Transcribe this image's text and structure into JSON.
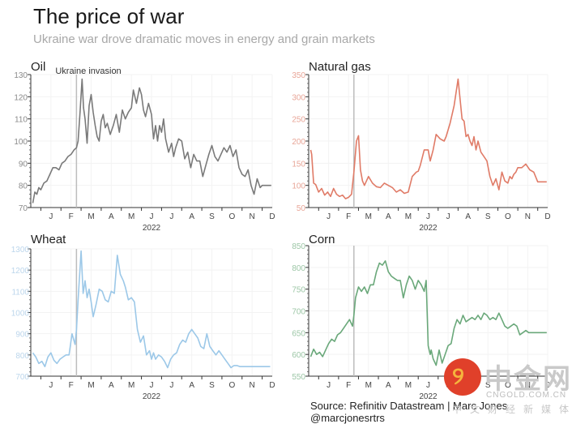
{
  "header": {
    "title": "The price of war",
    "subtitle": "Ukraine war drove dramatic moves in energy and grain markets"
  },
  "footer": {
    "source": "Source: Refinitiv Datastream | Marc Jones @marcjonesrtrs"
  },
  "watermark": {
    "logo_text": "中金网",
    "url": "CNGOLD.COM.CN",
    "tagline": "中文财经新媒体"
  },
  "chart_data": [
    {
      "type": "line",
      "title": "Oil",
      "color": "#7a7a7a",
      "axis_color": "#8a8a8a",
      "annotation": {
        "label": "Ukraine invasion",
        "x": 1.77
      },
      "xlabel": "2022",
      "x_ticks": [
        "J",
        "F",
        "M",
        "A",
        "M",
        "J",
        "J",
        "A",
        "S",
        "O",
        "N",
        "D"
      ],
      "ylim": [
        70,
        130
      ],
      "y_ticks": [
        70,
        80,
        90,
        100,
        110,
        120,
        130
      ],
      "x": [
        -0.4,
        -0.3,
        -0.2,
        -0.1,
        0.0,
        0.15,
        0.3,
        0.45,
        0.6,
        0.75,
        0.9,
        1.05,
        1.2,
        1.35,
        1.5,
        1.65,
        1.77,
        1.85,
        1.95,
        2.05,
        2.12,
        2.2,
        2.3,
        2.4,
        2.5,
        2.6,
        2.7,
        2.8,
        2.9,
        3.0,
        3.1,
        3.2,
        3.3,
        3.45,
        3.6,
        3.75,
        3.9,
        4.05,
        4.2,
        4.35,
        4.5,
        4.6,
        4.75,
        4.9,
        5.0,
        5.1,
        5.2,
        5.35,
        5.5,
        5.6,
        5.7,
        5.8,
        5.9,
        6.0,
        6.1,
        6.2,
        6.35,
        6.5,
        6.6,
        6.7,
        6.85,
        7.0,
        7.15,
        7.3,
        7.45,
        7.6,
        7.75,
        7.9,
        8.05,
        8.2,
        8.35,
        8.5,
        8.65,
        8.8,
        8.95,
        9.1,
        9.25,
        9.4,
        9.55,
        9.7,
        9.85,
        10.0,
        10.15,
        10.3,
        10.45,
        10.6,
        10.75,
        10.9,
        11.0,
        11.1,
        11.2,
        11.3,
        11.45
      ],
      "values": [
        72,
        77,
        76,
        79,
        78,
        81,
        82,
        85,
        88,
        88,
        87,
        90,
        91,
        93,
        94,
        96,
        97,
        100,
        113,
        128,
        115,
        110,
        99,
        116,
        121,
        113,
        107,
        102,
        100,
        109,
        112,
        106,
        108,
        103,
        107,
        112,
        104,
        114,
        110,
        113,
        115,
        123,
        117,
        124,
        121,
        114,
        111,
        117,
        112,
        101,
        107,
        100,
        107,
        104,
        110,
        101,
        95,
        99,
        93,
        97,
        101,
        100,
        92,
        95,
        88,
        94,
        91,
        91,
        84,
        89,
        94,
        98,
        93,
        91,
        94,
        97,
        95,
        98,
        93,
        96,
        88,
        85,
        84,
        87,
        80,
        76,
        83,
        79,
        80,
        80,
        80,
        80,
        80
      ]
    },
    {
      "type": "line",
      "title": "Natural gas",
      "color": "#e07b67",
      "axis_color": "#e8a597",
      "annotation": {
        "label": "",
        "x": 1.77
      },
      "xlabel": "2022",
      "x_ticks": [
        "J",
        "F",
        "M",
        "A",
        "M",
        "J",
        "J",
        "A",
        "S",
        "O",
        "N",
        "D"
      ],
      "ylim": [
        50,
        350
      ],
      "y_ticks": [
        50,
        100,
        150,
        200,
        250,
        300,
        350
      ],
      "x": [
        -0.4,
        -0.35,
        -0.25,
        -0.15,
        0.0,
        0.15,
        0.3,
        0.45,
        0.6,
        0.75,
        0.9,
        1.05,
        1.2,
        1.35,
        1.5,
        1.65,
        1.77,
        1.9,
        2.0,
        2.1,
        2.2,
        2.3,
        2.5,
        2.7,
        2.9,
        3.1,
        3.3,
        3.5,
        3.7,
        3.9,
        4.1,
        4.3,
        4.5,
        4.7,
        4.9,
        5.0,
        5.1,
        5.3,
        5.5,
        5.6,
        5.75,
        5.9,
        6.1,
        6.3,
        6.4,
        6.6,
        6.8,
        7.0,
        7.2,
        7.3,
        7.4,
        7.5,
        7.6,
        7.7,
        7.8,
        7.9,
        8.0,
        8.15,
        8.3,
        8.45,
        8.6,
        8.75,
        8.9,
        9.05,
        9.2,
        9.35,
        9.5,
        9.6,
        9.7,
        9.8,
        9.9,
        10.0,
        10.2,
        10.4,
        10.6,
        10.8,
        11.0,
        11.15,
        11.3,
        11.45
      ],
      "values": [
        180,
        170,
        105,
        102,
        85,
        93,
        78,
        85,
        75,
        93,
        80,
        75,
        78,
        70,
        73,
        80,
        130,
        200,
        212,
        135,
        110,
        100,
        120,
        105,
        97,
        95,
        105,
        100,
        95,
        85,
        90,
        82,
        85,
        120,
        130,
        132,
        145,
        180,
        180,
        155,
        180,
        215,
        205,
        200,
        210,
        240,
        280,
        340,
        250,
        245,
        210,
        215,
        200,
        190,
        210,
        180,
        200,
        175,
        165,
        155,
        120,
        100,
        115,
        90,
        130,
        110,
        105,
        120,
        115,
        125,
        130,
        140,
        140,
        148,
        135,
        130,
        108,
        108,
        108,
        108
      ],
      "_note": "watermark-free"
    },
    {
      "type": "line",
      "title": "Wheat",
      "color": "#9cc8e8",
      "axis_color": "#bcd6ec",
      "annotation": {
        "label": "",
        "x": 1.77
      },
      "xlabel": "2022",
      "x_ticks": [
        "J",
        "F",
        "M",
        "A",
        "M",
        "J",
        "J",
        "A",
        "S",
        "O",
        "N",
        "D"
      ],
      "ylim": [
        700,
        1300
      ],
      "y_ticks": [
        700,
        800,
        900,
        1000,
        1100,
        1200,
        1300
      ],
      "x": [
        -0.4,
        -0.25,
        -0.1,
        0.05,
        0.2,
        0.35,
        0.5,
        0.65,
        0.8,
        0.95,
        1.1,
        1.25,
        1.4,
        1.55,
        1.7,
        1.77,
        1.85,
        2.0,
        2.1,
        2.2,
        2.3,
        2.4,
        2.5,
        2.6,
        2.75,
        2.9,
        3.05,
        3.2,
        3.35,
        3.5,
        3.65,
        3.8,
        3.95,
        4.1,
        4.2,
        4.35,
        4.5,
        4.65,
        4.8,
        4.95,
        5.1,
        5.25,
        5.4,
        5.5,
        5.6,
        5.7,
        5.85,
        6.0,
        6.15,
        6.3,
        6.45,
        6.6,
        6.75,
        6.9,
        7.05,
        7.2,
        7.35,
        7.5,
        7.65,
        7.8,
        7.95,
        8.1,
        8.25,
        8.4,
        8.55,
        8.7,
        8.85,
        9.0,
        9.15,
        9.3,
        9.45,
        9.6,
        9.75,
        9.9,
        10.05,
        10.2,
        10.35,
        10.5,
        10.65,
        10.8,
        10.95,
        11.1,
        11.25,
        11.4
      ],
      "values": [
        810,
        790,
        760,
        770,
        745,
        790,
        810,
        775,
        760,
        780,
        790,
        800,
        800,
        900,
        850,
        920,
        1060,
        1290,
        1090,
        1150,
        1070,
        1110,
        1050,
        980,
        1040,
        1110,
        1100,
        1060,
        1050,
        1100,
        1090,
        1270,
        1180,
        1150,
        1120,
        1060,
        1070,
        1050,
        920,
        860,
        890,
        800,
        820,
        780,
        810,
        780,
        800,
        790,
        770,
        740,
        780,
        800,
        810,
        850,
        870,
        860,
        900,
        920,
        900,
        880,
        840,
        830,
        900,
        840,
        820,
        800,
        820,
        800,
        780,
        760,
        740,
        750,
        750,
        745,
        745,
        745,
        745,
        745,
        745,
        745,
        745,
        745,
        745,
        745
      ]
    },
    {
      "type": "line",
      "title": "Corn",
      "color": "#6aa87a",
      "axis_color": "#9cc6a6",
      "annotation": {
        "label": "",
        "x": 1.77
      },
      "xlabel": "2022",
      "x_ticks": [
        "J",
        "F",
        "M",
        "A",
        "M",
        "J",
        "J",
        "A",
        "S",
        "O",
        "N",
        "D"
      ],
      "ylim": [
        550,
        850
      ],
      "y_ticks": [
        550,
        600,
        650,
        700,
        750,
        800,
        850
      ],
      "x": [
        -0.4,
        -0.25,
        -0.1,
        0.05,
        0.2,
        0.35,
        0.5,
        0.65,
        0.8,
        0.95,
        1.1,
        1.25,
        1.4,
        1.55,
        1.7,
        1.77,
        1.85,
        2.0,
        2.15,
        2.3,
        2.45,
        2.6,
        2.75,
        2.9,
        3.05,
        3.2,
        3.35,
        3.5,
        3.65,
        3.8,
        3.95,
        4.1,
        4.25,
        4.4,
        4.55,
        4.7,
        4.85,
        5.0,
        5.15,
        5.3,
        5.4,
        5.5,
        5.6,
        5.65,
        5.75,
        5.9,
        6.05,
        6.2,
        6.35,
        6.5,
        6.65,
        6.8,
        6.95,
        7.1,
        7.25,
        7.4,
        7.55,
        7.7,
        7.85,
        8.0,
        8.15,
        8.3,
        8.45,
        8.6,
        8.75,
        8.9,
        9.05,
        9.2,
        9.35,
        9.5,
        9.65,
        9.8,
        9.95,
        10.1,
        10.25,
        10.4,
        10.55,
        10.7,
        10.85,
        11.0,
        11.15,
        11.3,
        11.45
      ],
      "values": [
        595,
        612,
        600,
        605,
        595,
        610,
        625,
        635,
        630,
        645,
        650,
        660,
        670,
        680,
        665,
        690,
        730,
        755,
        745,
        755,
        740,
        760,
        760,
        790,
        810,
        805,
        815,
        790,
        780,
        775,
        770,
        770,
        730,
        760,
        780,
        770,
        750,
        770,
        760,
        745,
        770,
        620,
        600,
        610,
        590,
        575,
        610,
        580,
        600,
        620,
        625,
        660,
        680,
        670,
        690,
        675,
        680,
        685,
        680,
        690,
        680,
        695,
        690,
        680,
        685,
        680,
        695,
        680,
        665,
        660,
        665,
        670,
        665,
        645,
        650,
        655,
        650,
        650,
        650,
        650,
        650,
        650,
        650
      ]
    }
  ]
}
